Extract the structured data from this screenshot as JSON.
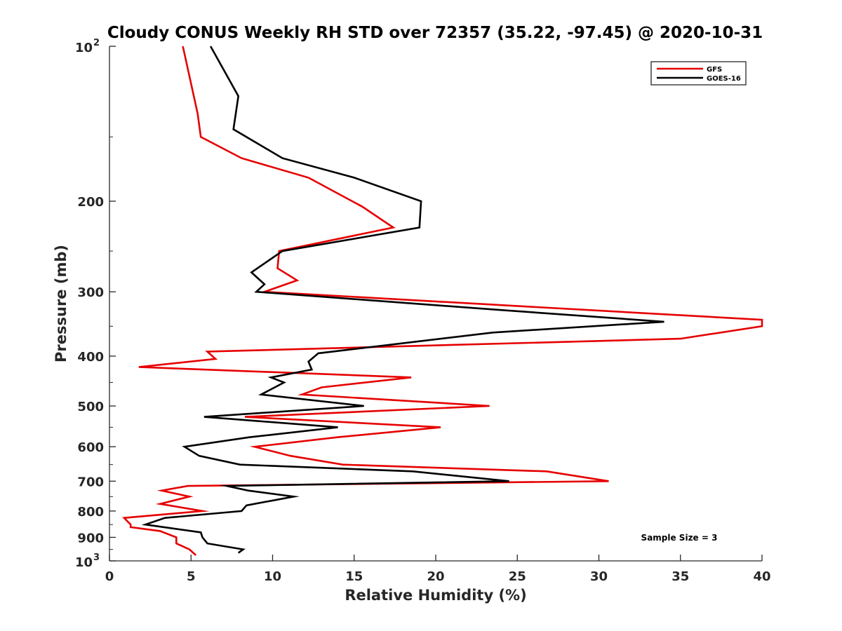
{
  "chart_data": {
    "type": "line",
    "title": "Cloudy CONUS Weekly RH STD over 72357 (35.22, -97.45) @ 2020-10-31",
    "xlabel": "Relative Humidity (%)",
    "ylabel": "Pressure (mb)",
    "xlim": [
      0,
      40
    ],
    "ylim": [
      100,
      1000
    ],
    "y_scale": "log",
    "y_reversed": true,
    "grid": false,
    "legend_position": "top-right",
    "x_ticks": [
      {
        "value": 0,
        "label": "0"
      },
      {
        "value": 5,
        "label": "5"
      },
      {
        "value": 10,
        "label": "10"
      },
      {
        "value": 15,
        "label": "15"
      },
      {
        "value": 20,
        "label": "20"
      },
      {
        "value": 25,
        "label": "25"
      },
      {
        "value": 30,
        "label": "30"
      },
      {
        "value": 35,
        "label": "35"
      },
      {
        "value": 40,
        "label": "40"
      }
    ],
    "y_ticks": [
      {
        "value": 200,
        "label": "200"
      },
      {
        "value": 300,
        "label": "300"
      },
      {
        "value": 400,
        "label": "400"
      },
      {
        "value": 500,
        "label": "500"
      },
      {
        "value": 600,
        "label": "600"
      },
      {
        "value": 700,
        "label": "700"
      },
      {
        "value": 800,
        "label": "800"
      },
      {
        "value": 900,
        "label": "900"
      }
    ],
    "y_power_ticks": [
      {
        "value": 100,
        "base": "10",
        "exp": "2"
      },
      {
        "value": 1000,
        "base": "10",
        "exp": "3"
      }
    ],
    "series": [
      {
        "name": "GFS",
        "color": "#e60000",
        "points": [
          [
            5.3,
            975
          ],
          [
            4.9,
            950
          ],
          [
            4.1,
            925
          ],
          [
            4.1,
            900
          ],
          [
            3.1,
            875
          ],
          [
            1.3,
            860
          ],
          [
            1.3,
            850
          ],
          [
            0.9,
            825
          ],
          [
            5.7,
            800
          ],
          [
            3.1,
            775
          ],
          [
            4.9,
            750
          ],
          [
            3.2,
            730
          ],
          [
            4.8,
            715
          ],
          [
            30.6,
            700
          ],
          [
            26.8,
            670
          ],
          [
            14.3,
            650
          ],
          [
            11.1,
            625
          ],
          [
            8.9,
            600
          ],
          [
            14.0,
            575
          ],
          [
            20.3,
            550
          ],
          [
            8.3,
            525
          ],
          [
            23.3,
            500
          ],
          [
            11.8,
            475
          ],
          [
            13.0,
            460
          ],
          [
            18.5,
            440
          ],
          [
            1.8,
            420
          ],
          [
            6.5,
            405
          ],
          [
            6.0,
            392
          ],
          [
            35.0,
            370
          ],
          [
            40.0,
            350
          ],
          [
            40.0,
            340
          ],
          [
            9.5,
            300
          ],
          [
            11.5,
            285
          ],
          [
            10.3,
            270
          ],
          [
            10.4,
            250
          ],
          [
            17.4,
            225
          ],
          [
            15.5,
            205
          ],
          [
            12.2,
            180
          ],
          [
            8.1,
            165
          ],
          [
            5.6,
            150
          ],
          [
            5.4,
            135
          ],
          [
            4.5,
            100
          ]
        ]
      },
      {
        "name": "GOES-16",
        "color": "#000000",
        "points": [
          [
            7.9,
            965
          ],
          [
            8.2,
            950
          ],
          [
            6.0,
            925
          ],
          [
            5.7,
            900
          ],
          [
            5.6,
            880
          ],
          [
            2.2,
            850
          ],
          [
            3.4,
            825
          ],
          [
            8.1,
            800
          ],
          [
            8.4,
            780
          ],
          [
            11.3,
            750
          ],
          [
            8.5,
            730
          ],
          [
            7.2,
            715
          ],
          [
            24.5,
            700
          ],
          [
            18.6,
            670
          ],
          [
            8.0,
            650
          ],
          [
            5.5,
            625
          ],
          [
            4.6,
            600
          ],
          [
            8.6,
            575
          ],
          [
            14.0,
            550
          ],
          [
            5.8,
            525
          ],
          [
            15.6,
            500
          ],
          [
            9.3,
            475
          ],
          [
            10.7,
            450
          ],
          [
            9.9,
            440
          ],
          [
            12.4,
            425
          ],
          [
            12.2,
            410
          ],
          [
            12.8,
            395
          ],
          [
            23.5,
            360
          ],
          [
            34.0,
            343
          ],
          [
            23.7,
            325
          ],
          [
            9.0,
            300
          ],
          [
            9.5,
            290
          ],
          [
            8.7,
            275
          ],
          [
            10.6,
            250
          ],
          [
            19.0,
            225
          ],
          [
            19.1,
            200
          ],
          [
            15.0,
            180
          ],
          [
            10.6,
            165
          ],
          [
            7.6,
            145
          ],
          [
            7.9,
            125
          ],
          [
            6.2,
            100
          ]
        ]
      }
    ],
    "annotation": "Sample Size = 3"
  }
}
